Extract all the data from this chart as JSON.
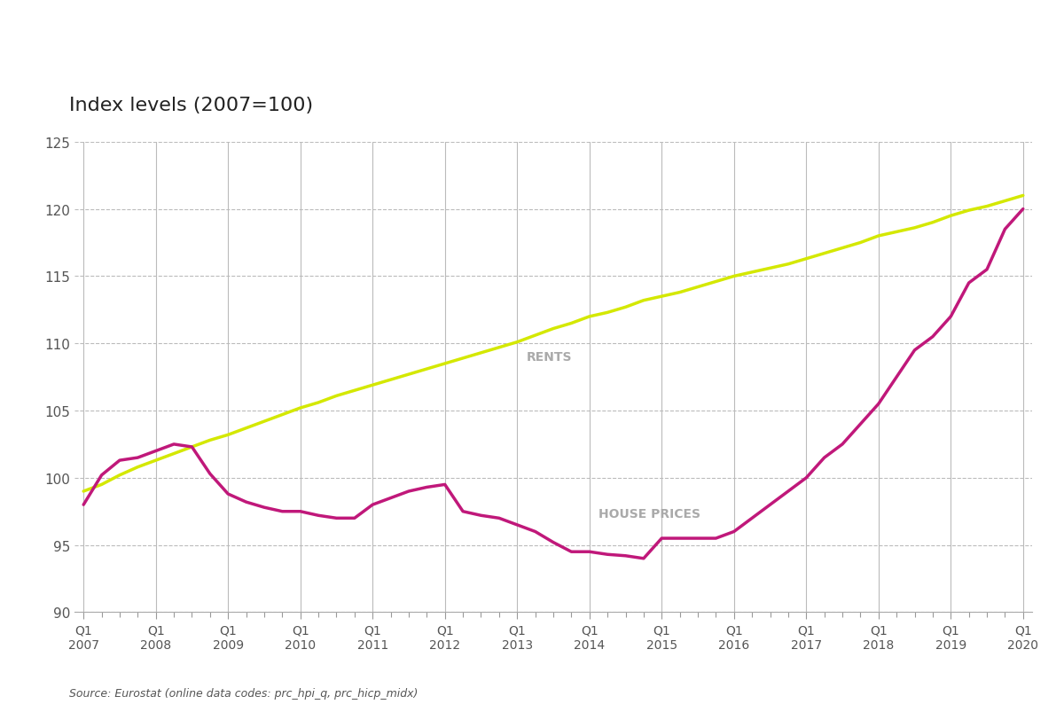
{
  "title": "Index levels (2007=100)",
  "source_text": "Source: Eurostat (online data codes: prc_hpi_q, prc_hicp_midx)",
  "ylim": [
    90,
    125
  ],
  "yticks": [
    90,
    95,
    100,
    105,
    110,
    115,
    120,
    125
  ],
  "background_color": "#ffffff",
  "rents_color": "#d4e800",
  "house_color": "#c0187a",
  "rents_label": "RENTS",
  "house_label": "HOUSE PRICES",
  "x_labels": [
    "Q1\n2007",
    "Q1\n2008",
    "Q1\n2009",
    "Q1\n2010",
    "Q1\n2011",
    "Q1\n2012",
    "Q1\n2013",
    "Q1\n2014",
    "Q1\n2015",
    "Q1\n2016",
    "Q1\n2017",
    "Q1\n2018",
    "Q1\n2019",
    "Q1\n2020"
  ],
  "x_positions": [
    0,
    4,
    8,
    12,
    16,
    20,
    24,
    28,
    32,
    36,
    40,
    44,
    48,
    52
  ],
  "rents": [
    99.0,
    99.5,
    100.2,
    100.8,
    101.3,
    101.8,
    102.3,
    102.8,
    103.2,
    103.7,
    104.2,
    104.7,
    105.2,
    105.6,
    106.1,
    106.5,
    106.9,
    107.3,
    107.7,
    108.1,
    108.5,
    108.9,
    109.3,
    109.7,
    110.1,
    110.6,
    111.1,
    111.5,
    112.0,
    112.3,
    112.7,
    113.2,
    113.5,
    113.8,
    114.2,
    114.6,
    115.0,
    115.3,
    115.6,
    115.9,
    116.3,
    116.7,
    117.1,
    117.5,
    118.0,
    118.3,
    118.6,
    119.0,
    119.5,
    119.9,
    120.2,
    120.6,
    121.0
  ],
  "house_prices": [
    98.0,
    100.2,
    101.3,
    101.5,
    102.0,
    102.5,
    102.3,
    100.3,
    98.8,
    98.2,
    97.8,
    97.5,
    97.5,
    97.2,
    97.0,
    97.0,
    98.0,
    98.5,
    99.0,
    99.3,
    99.5,
    97.5,
    97.2,
    97.0,
    96.5,
    96.0,
    95.2,
    94.5,
    94.5,
    94.3,
    94.2,
    94.0,
    95.5,
    95.5,
    95.5,
    95.5,
    96.0,
    97.0,
    98.0,
    99.0,
    100.0,
    101.5,
    102.5,
    104.0,
    105.5,
    107.5,
    109.5,
    110.5,
    112.0,
    114.5,
    115.5,
    118.5,
    120.0
  ]
}
